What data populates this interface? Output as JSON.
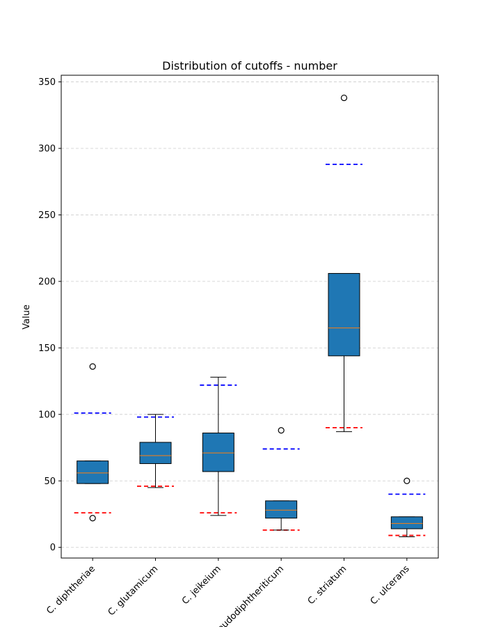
{
  "chart_data": {
    "type": "box",
    "title": "Distribution of cutoffs - number",
    "xlabel": "",
    "ylabel": "Value",
    "ylim": [
      -8,
      355
    ],
    "yticks": [
      0,
      50,
      100,
      150,
      200,
      250,
      300,
      350
    ],
    "grid": "horizontal dashed",
    "categories": [
      "C. diphtheriae",
      "C. glutamicum",
      "C. jeikeium",
      "C. pseudodiphtheriticum",
      "C. striatum",
      "C. ulcerans"
    ],
    "boxes": [
      {
        "category": "C. diphtheriae",
        "whisker_low": 48,
        "q1": 48,
        "median": 56,
        "q3": 65,
        "whisker_high": 65,
        "outliers": [
          136,
          22
        ],
        "blue_line": 101,
        "red_line": 26
      },
      {
        "category": "C. glutamicum",
        "whisker_low": 45,
        "q1": 63,
        "median": 69,
        "q3": 79,
        "whisker_high": 100,
        "outliers": [],
        "blue_line": 98,
        "red_line": 46
      },
      {
        "category": "C. jeikeium",
        "whisker_low": 24,
        "q1": 57,
        "median": 71,
        "q3": 86,
        "whisker_high": 128,
        "outliers": [],
        "blue_line": 122,
        "red_line": 26
      },
      {
        "category": "C. pseudodiphtheriticum",
        "whisker_low": 13,
        "q1": 22,
        "median": 28,
        "q3": 35,
        "whisker_high": 35,
        "outliers": [
          88
        ],
        "blue_line": 74,
        "red_line": 13
      },
      {
        "category": "C. striatum",
        "whisker_low": 87,
        "q1": 144,
        "median": 165,
        "q3": 206,
        "whisker_high": 206,
        "outliers": [
          338
        ],
        "blue_line": 288,
        "red_line": 90
      },
      {
        "category": "C. ulcerans",
        "whisker_low": 8,
        "q1": 14,
        "median": 18,
        "q3": 23,
        "whisker_high": 23,
        "outliers": [
          50
        ],
        "blue_line": 40,
        "red_line": 9
      }
    ],
    "colors": {
      "box_fill": "#1f77b4",
      "median": "#ff7f0e",
      "upper_ref": "#0000ff",
      "lower_ref": "#ff0000",
      "grid": "#cccccc"
    }
  }
}
